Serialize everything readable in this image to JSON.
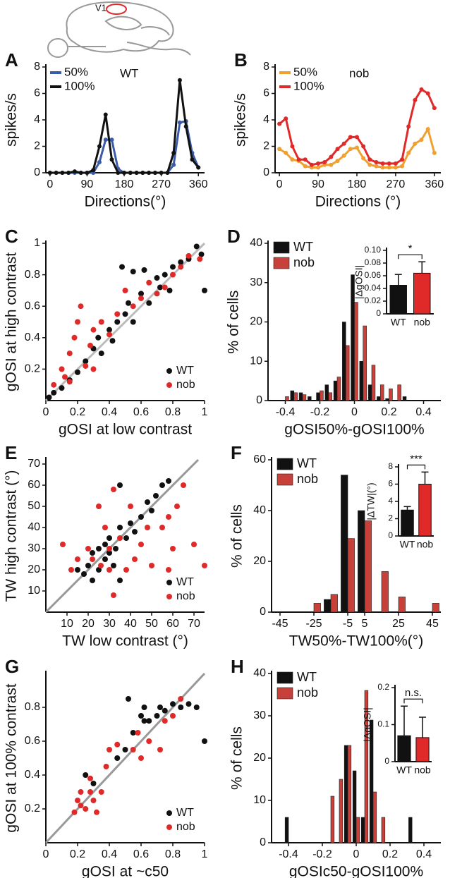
{
  "brain_label": "V1",
  "chart_data": [
    {
      "type": "line",
      "panel_label": "A",
      "title": "WT",
      "xlabel": "Directions(°)",
      "ylabel": "spikes/s",
      "x": [
        0,
        15,
        30,
        45,
        60,
        75,
        90,
        105,
        120,
        135,
        150,
        165,
        180,
        195,
        210,
        225,
        240,
        255,
        270,
        285,
        300,
        315,
        330,
        345,
        360
      ],
      "series": [
        {
          "name": "50%",
          "color": "#3a5ba8",
          "values": [
            0,
            0,
            0,
            0,
            0,
            0,
            0,
            0,
            0.8,
            2.5,
            2.5,
            0.3,
            0,
            0,
            0,
            0,
            0,
            0,
            0,
            0,
            0.6,
            3.8,
            3.9,
            1.5,
            0.4
          ]
        },
        {
          "name": "100%",
          "color": "#111111",
          "values": [
            0,
            0,
            0,
            0,
            0.1,
            0,
            0,
            0.2,
            2.0,
            4.4,
            1.0,
            0,
            0,
            0,
            0,
            0,
            0,
            0,
            0,
            0,
            1.5,
            7.0,
            3.5,
            1.0,
            0.4
          ]
        }
      ],
      "xlim": [
        -10,
        375
      ],
      "xticks": [
        0,
        90,
        180,
        270,
        360
      ],
      "ylim": [
        0,
        8
      ],
      "yticks": [
        0,
        2,
        4,
        6,
        8
      ]
    },
    {
      "type": "line",
      "panel_label": "B",
      "title": "nob",
      "xlabel": "Directions (°)",
      "ylabel": "spikes/s",
      "x": [
        0,
        15,
        30,
        45,
        60,
        75,
        90,
        105,
        120,
        135,
        150,
        165,
        180,
        195,
        210,
        225,
        240,
        255,
        270,
        285,
        300,
        315,
        330,
        345,
        360
      ],
      "series": [
        {
          "name": "50%",
          "color": "#f0a030",
          "values": [
            1.8,
            1.5,
            1.0,
            0.9,
            0.5,
            0.4,
            0.4,
            0.6,
            0.6,
            0.9,
            1.3,
            1.8,
            1.9,
            1.1,
            0.6,
            0.5,
            0.4,
            0.4,
            0.4,
            0.5,
            1.5,
            2.2,
            2.5,
            3.3,
            1.5
          ]
        },
        {
          "name": "100%",
          "color": "#e02a2a",
          "values": [
            3.7,
            4.1,
            2.0,
            1.0,
            1.0,
            0.6,
            0.7,
            0.8,
            1.2,
            1.8,
            2.2,
            2.7,
            2.7,
            2.0,
            1.0,
            0.8,
            0.7,
            0.7,
            0.7,
            1.0,
            3.5,
            5.5,
            6.3,
            6.0,
            4.9
          ]
        }
      ],
      "xlim": [
        -10,
        375
      ],
      "xticks": [
        0,
        90,
        180,
        270,
        360
      ],
      "ylim": [
        0,
        8
      ],
      "yticks": [
        0,
        2,
        4,
        6,
        8
      ]
    },
    {
      "type": "scatter",
      "panel_label": "C",
      "xlabel": "gOSI at low contrast",
      "ylabel": "gOSI at high contrast",
      "diagonal": true,
      "diagonal_color": "#bbbbbb",
      "series": [
        {
          "name": "WT",
          "color": "#111111",
          "x": [
            0.02,
            0.05,
            0.1,
            0.15,
            0.2,
            0.25,
            0.3,
            0.33,
            0.35,
            0.4,
            0.42,
            0.45,
            0.5,
            0.52,
            0.55,
            0.6,
            0.62,
            0.65,
            0.7,
            0.72,
            0.75,
            0.8,
            0.85,
            0.9,
            0.95,
            0.98,
            1.0,
            0.55,
            0.48,
            0.78
          ],
          "y": [
            0.02,
            0.05,
            0.08,
            0.13,
            0.18,
            0.25,
            0.33,
            0.4,
            0.3,
            0.45,
            0.38,
            0.5,
            0.55,
            0.62,
            0.5,
            0.68,
            0.83,
            0.62,
            0.78,
            0.72,
            0.8,
            0.85,
            0.88,
            0.9,
            0.98,
            0.93,
            0.7,
            0.82,
            0.85,
            0.7
          ]
        },
        {
          "name": "nob",
          "color": "#e02a2a",
          "x": [
            0.05,
            0.1,
            0.12,
            0.15,
            0.18,
            0.2,
            0.22,
            0.25,
            0.28,
            0.3,
            0.35,
            0.4,
            0.45,
            0.5,
            0.55,
            0.6,
            0.65,
            0.7,
            0.75,
            0.8,
            0.85,
            0.9,
            0.97,
            0.15,
            0.3
          ],
          "y": [
            0.1,
            0.2,
            0.15,
            0.3,
            0.4,
            0.5,
            0.6,
            0.22,
            0.35,
            0.45,
            0.5,
            0.42,
            0.55,
            0.7,
            0.6,
            0.65,
            0.75,
            0.68,
            0.72,
            0.8,
            0.85,
            0.92,
            0.9,
            0.12,
            0.2
          ]
        }
      ],
      "xlim": [
        0,
        1
      ],
      "xticks": [
        0,
        0.2,
        0.4,
        0.6,
        0.8,
        1
      ],
      "ylim": [
        0,
        1
      ],
      "yticks": [
        0.2,
        0.4,
        0.6,
        0.8,
        1
      ]
    },
    {
      "type": "grouped_bar",
      "panel_label": "D",
      "xlabel": "gOSI50%-gOSI100%",
      "ylabel": "% of cells",
      "x": [
        -0.4,
        -0.35,
        -0.3,
        -0.25,
        -0.2,
        -0.15,
        -0.1,
        -0.05,
        0,
        0.05,
        0.1,
        0.15,
        0.2,
        0.25,
        0.3,
        0.35
      ],
      "series": [
        {
          "name": "WT",
          "color": "#111111",
          "values": [
            0,
            2.5,
            2,
            1,
            2,
            4,
            5,
            20,
            32,
            10,
            4,
            1,
            0.5,
            0,
            1,
            0
          ]
        },
        {
          "name": "nob",
          "color": "#c8403a",
          "values": [
            1,
            2,
            1.5,
            0,
            2.5,
            2,
            6,
            14,
            25,
            19,
            9,
            4,
            3,
            4,
            0,
            0
          ]
        }
      ],
      "xlim": [
        -0.5,
        0.5
      ],
      "xticks": [
        -0.4,
        -0.2,
        0,
        0.2,
        0.4
      ],
      "ylim": [
        0,
        40
      ],
      "yticks": [
        0,
        10,
        20,
        30,
        40
      ]
    },
    {
      "type": "bar",
      "ylabel": "|ΔgOSI|",
      "categories": [
        "WT",
        "nob"
      ],
      "values": [
        0.045,
        0.064
      ],
      "errors": [
        0.017,
        0.018
      ],
      "colors": [
        "#111111",
        "#e02a2a"
      ],
      "significance": "*",
      "ylim": [
        0,
        0.1
      ],
      "yticks": [
        0,
        0.02,
        0.04,
        0.06,
        0.08,
        {
          "value": 0.1,
          "label": "0.10"
        }
      ]
    },
    {
      "type": "scatter",
      "panel_label": "E",
      "xlabel": "TW low contrast (°)",
      "ylabel": "TW high contrast (°)",
      "diagonal": true,
      "diagonal_color": "#999999",
      "series": [
        {
          "name": "WT",
          "color": "#111111",
          "x": [
            15,
            18,
            20,
            22,
            22,
            25,
            25,
            28,
            28,
            30,
            30,
            32,
            33,
            35,
            35,
            38,
            40,
            42,
            45,
            50,
            52,
            55,
            58,
            35,
            48
          ],
          "y": [
            20,
            18,
            22,
            15,
            28,
            20,
            30,
            25,
            32,
            28,
            35,
            22,
            30,
            40,
            15,
            35,
            42,
            38,
            45,
            48,
            55,
            60,
            62,
            60,
            52
          ]
        },
        {
          "name": "nob",
          "color": "#e02a2a",
          "x": [
            8,
            12,
            15,
            20,
            22,
            25,
            26,
            28,
            30,
            30,
            32,
            35,
            38,
            40,
            42,
            45,
            48,
            50,
            55,
            58,
            60,
            62,
            65,
            70,
            75,
            32,
            58
          ],
          "y": [
            32,
            20,
            25,
            30,
            25,
            50,
            22,
            40,
            30,
            20,
            58,
            35,
            20,
            50,
            25,
            32,
            40,
            22,
            40,
            20,
            30,
            50,
            60,
            32,
            22,
            8,
            45
          ]
        }
      ],
      "xlim": [
        0,
        75
      ],
      "xticks": [
        10,
        20,
        30,
        40,
        50,
        60,
        70
      ],
      "ylim": [
        0,
        72
      ],
      "yticks": [
        10,
        20,
        30,
        40,
        50,
        60,
        70
      ]
    },
    {
      "type": "grouped_bar",
      "panel_label": "F",
      "xlabel": "TW50%-TW100%(°)",
      "ylabel": "% of cells",
      "x": [
        -25,
        -15,
        -5,
        5,
        15,
        25,
        35,
        45
      ],
      "series": [
        {
          "name": "WT",
          "color": "#111111",
          "values": [
            0,
            5,
            54,
            40,
            0,
            0,
            0,
            0
          ]
        },
        {
          "name": "nob",
          "color": "#c8403a",
          "values": [
            3.5,
            7,
            29,
            36,
            16,
            6,
            0,
            3.5
          ]
        }
      ],
      "xlim": [
        -50,
        50
      ],
      "xticks": [
        -45,
        -25,
        -5,
        5,
        25,
        45
      ],
      "ylim": [
        0,
        60
      ],
      "yticks": [
        0,
        20,
        40,
        60
      ]
    },
    {
      "type": "bar",
      "ylabel": "|ΔTW|(°)",
      "categories": [
        "WT",
        "nob"
      ],
      "values": [
        3,
        6
      ],
      "errors": [
        0.4,
        1.4
      ],
      "colors": [
        "#111111",
        "#e02a2a"
      ],
      "significance": "***",
      "ylim": [
        0,
        8
      ],
      "yticks": [
        0,
        2,
        4,
        6,
        8
      ]
    },
    {
      "type": "scatter",
      "panel_label": "G",
      "xlabel": "gOSI at ~c50",
      "ylabel": "gOSI at 100% contrast",
      "diagonal": true,
      "diagonal_color": "#999999",
      "series": [
        {
          "name": "WT",
          "color": "#111111",
          "x": [
            0.25,
            0.3,
            0.45,
            0.5,
            0.52,
            0.55,
            0.6,
            0.62,
            0.65,
            0.7,
            0.72,
            0.75,
            0.8,
            0.85,
            0.9,
            0.95,
            1.0,
            0.62
          ],
          "y": [
            0.4,
            0.35,
            0.5,
            0.55,
            0.85,
            0.65,
            0.75,
            0.8,
            0.72,
            0.75,
            0.8,
            0.78,
            0.82,
            0.8,
            0.82,
            0.8,
            0.6,
            0.72
          ]
        },
        {
          "name": "nob",
          "color": "#e02a2a",
          "x": [
            0.18,
            0.2,
            0.22,
            0.22,
            0.25,
            0.28,
            0.3,
            0.32,
            0.35,
            0.38,
            0.4,
            0.45,
            0.55,
            0.58,
            0.6,
            0.65,
            0.72,
            0.75,
            0.8,
            0.85,
            0.28
          ],
          "y": [
            0.18,
            0.25,
            0.3,
            0.22,
            0.2,
            0.3,
            0.25,
            0.18,
            0.3,
            0.45,
            0.55,
            0.58,
            0.55,
            0.65,
            0.5,
            0.6,
            0.55,
            0.72,
            0.75,
            0.85,
            0.38
          ]
        }
      ],
      "xlim": [
        0,
        1
      ],
      "xticks": [
        0,
        0.2,
        0.4,
        0.6,
        0.8,
        1
      ],
      "ylim": [
        0,
        1
      ],
      "yticks": [
        0.2,
        0.4,
        0.6,
        0.8
      ]
    },
    {
      "type": "grouped_bar",
      "panel_label": "H",
      "xlabel": "gOSIc50-gOSI100%",
      "ylabel": "% of cells",
      "x": [
        -0.4,
        -0.15,
        -0.1,
        -0.05,
        0,
        0.05,
        0.1,
        0.15,
        0.33
      ],
      "series": [
        {
          "name": "WT",
          "color": "#111111",
          "values": [
            6,
            0,
            0,
            23,
            17,
            6,
            29,
            0,
            6
          ]
        },
        {
          "name": "nob",
          "color": "#c8403a",
          "values": [
            0,
            11,
            15,
            23,
            6,
            36,
            12,
            6,
            0
          ]
        }
      ],
      "xlim": [
        -0.5,
        0.5
      ],
      "xticks": [
        -0.4,
        -0.2,
        0,
        0.2,
        0.4
      ],
      "ylim": [
        0,
        40
      ],
      "yticks": [
        0,
        10,
        20,
        30,
        40
      ]
    },
    {
      "type": "bar",
      "ylabel": "|ΔgOSI|",
      "categories": [
        "WT",
        "nob"
      ],
      "values": [
        0.07,
        0.065
      ],
      "errors": [
        0.08,
        0.055
      ],
      "colors": [
        "#111111",
        "#e02a2a"
      ],
      "significance": "n.s.",
      "ylim": [
        0,
        0.2
      ],
      "yticks": [
        0,
        0.1,
        0.2
      ]
    }
  ]
}
